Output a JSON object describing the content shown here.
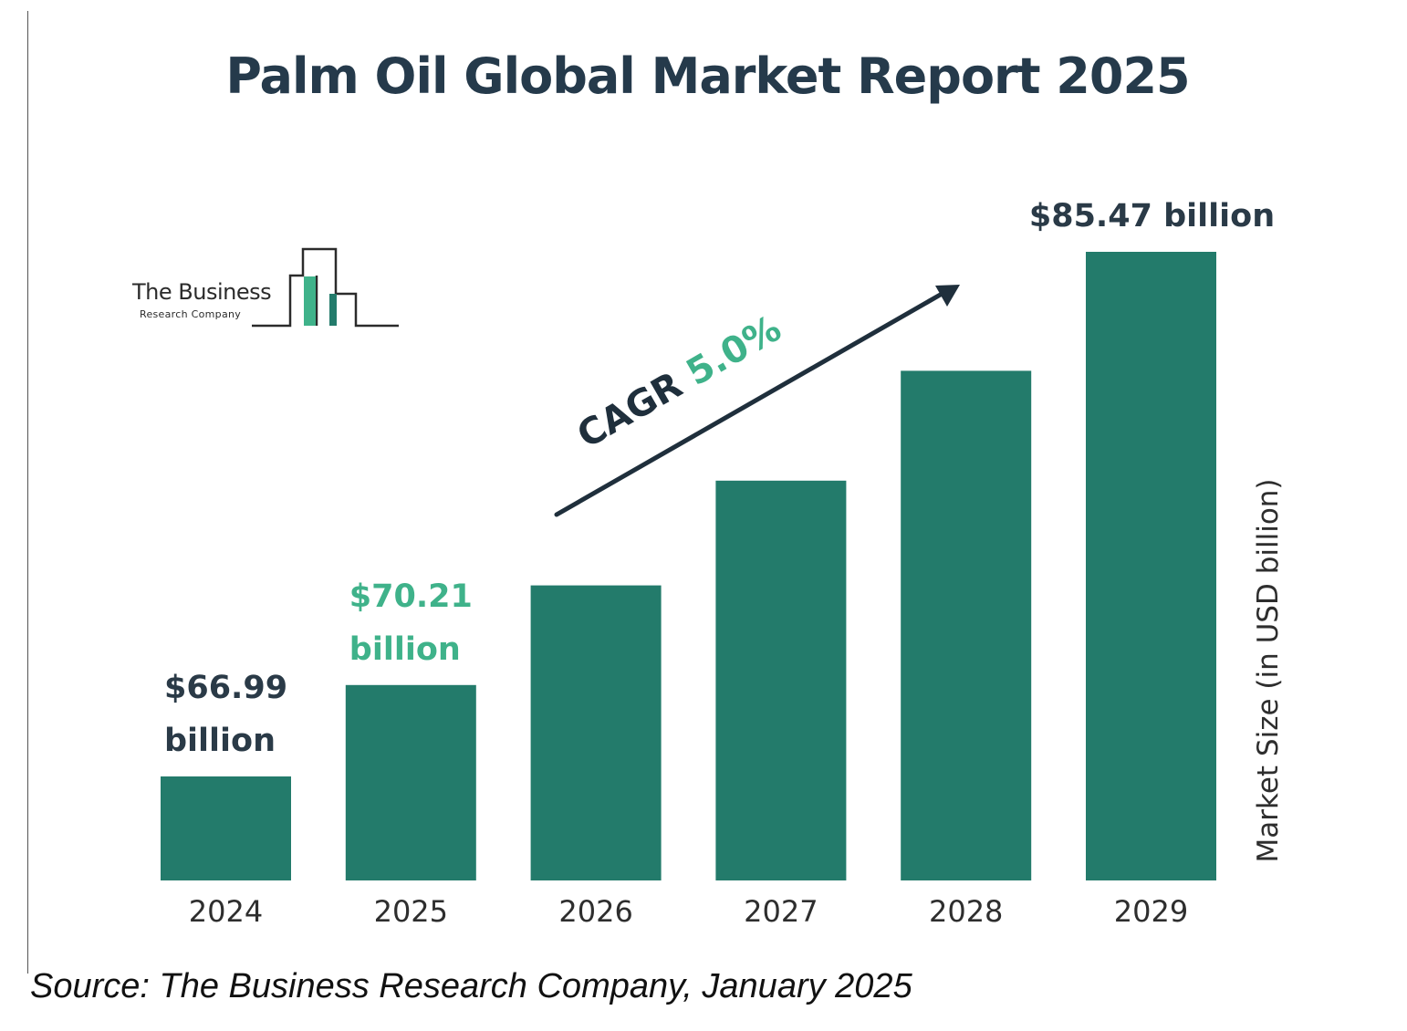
{
  "colors": {
    "bar": "#237b6b",
    "title": "#253a4b",
    "label_dark": "#2a3a47",
    "label_accent": "#3fb28a",
    "axis_text": "#2e2e2e",
    "arrow": "#1f2f3c"
  },
  "logo": {
    "name_line1": "The Business",
    "name_line2": "Research Company",
    "icon": "building-bars-logo-icon"
  },
  "source": "Source: The Business Research Company, January 2025",
  "chart_data": {
    "type": "bar",
    "title": "Palm Oil Global Market Report 2025",
    "categories": [
      "2024",
      "2025",
      "2026",
      "2027",
      "2028",
      "2029"
    ],
    "values": [
      66.99,
      70.21,
      73.72,
      77.41,
      81.28,
      85.47
    ],
    "ylabel": "Market Size (in USD billion)",
    "xlabel": "",
    "data_labels": [
      {
        "category": "2024",
        "lines": [
          "$66.99",
          "billion"
        ],
        "color": "label_dark"
      },
      {
        "category": "2025",
        "lines": [
          "$70.21",
          "billion"
        ],
        "color": "label_accent"
      },
      {
        "category": "2029",
        "lines": [
          "$85.47 billion"
        ],
        "color": "label_dark"
      }
    ],
    "annotation": {
      "prefix": "CAGR",
      "value": "5.0%"
    },
    "grid": false,
    "legend": false
  }
}
